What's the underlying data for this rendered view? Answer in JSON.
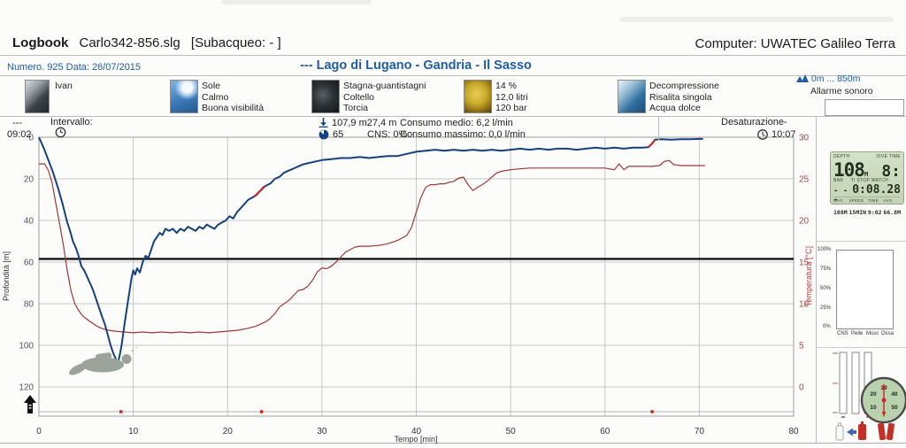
{
  "page": {
    "logbook_label": "Logbook",
    "file_name": "Carlo342-856.slg",
    "subject_suffix": "[Subacqueo:  - ]",
    "computer": "Computer: UWATEC Galileo Terra"
  },
  "header": {
    "number_date": "Numero. 925  Data: 26/07/2015",
    "dive_title": "---  Lago di Lugano - Gandria - Il Sasso",
    "altitude_range": "0m ... 850m",
    "alarm_label": "Allarme sonoro"
  },
  "tags": {
    "diver": {
      "line1": "Ivan"
    },
    "conditions": {
      "line1": "Sole",
      "line2": "Calmo",
      "line3": "Buona visibilità"
    },
    "equipment": {
      "line1": "Stagna-guantistagni",
      "line2": "Coltello",
      "line3": "Torcia"
    },
    "gas": {
      "line1": "14 %",
      "line2": "12,0 litri",
      "line3": "120 bar"
    },
    "dive_type": {
      "line1": "Decompressione",
      "line2": "Risalita singola",
      "line3": "Acqua dolce"
    }
  },
  "stats": {
    "entry_dashes": "---",
    "entry_time": "09:02",
    "interval_label": "Intervallo:",
    "max_depth": "107,9 m",
    "avg_depth": "27,4 m",
    "duration_min": "65",
    "cns": "CNS: 0%",
    "consumo_medio": "Consumo medio:  6,2 l/min",
    "consumo_massimo": "Consumo massimo:  0,0 l/min",
    "desat_label": "Desaturazione-",
    "desat_time": "10:07"
  },
  "chart_data": {
    "type": "line",
    "xlabel": "Tempo [min]",
    "ylabel_left": "Profondità [m]",
    "ylabel_right": "Temperatura [°C]",
    "xlim": [
      0,
      80
    ],
    "x_ticks": [
      0,
      10,
      20,
      30,
      40,
      50,
      60,
      70,
      80
    ],
    "depth_axis": {
      "range": [
        0,
        120
      ],
      "ticks": [
        0,
        20,
        40,
        60,
        80,
        100,
        120
      ],
      "inverted": true
    },
    "temp_axis": {
      "range": [
        0,
        30
      ],
      "ticks": [
        0,
        5,
        10,
        15,
        20,
        25,
        30
      ]
    },
    "reference_line_depth_m": 58.5,
    "grid": true,
    "colors": {
      "depth": "#16417f",
      "temperature": "#a23737",
      "alarm": "#cc2222",
      "reference": "#141414"
    },
    "series": [
      {
        "name": "Profondità [m]",
        "axis": "depth",
        "points": [
          [
            0,
            0
          ],
          [
            0.5,
            5
          ],
          [
            1,
            11
          ],
          [
            1.5,
            17
          ],
          [
            2,
            24
          ],
          [
            2.5,
            32
          ],
          [
            3,
            41
          ],
          [
            3.3,
            45
          ],
          [
            3.6,
            50
          ],
          [
            3.9,
            53
          ],
          [
            4.2,
            57
          ],
          [
            4.5,
            62
          ],
          [
            4.8,
            64
          ],
          [
            5.1,
            67
          ],
          [
            5.4,
            70
          ],
          [
            5.7,
            73
          ],
          [
            6,
            77
          ],
          [
            6.3,
            81
          ],
          [
            6.6,
            85
          ],
          [
            7,
            90
          ],
          [
            7.3,
            95
          ],
          [
            7.6,
            100
          ],
          [
            7.9,
            104
          ],
          [
            8.2,
            107
          ],
          [
            8.4,
            108
          ],
          [
            8.6,
            104
          ],
          [
            8.8,
            99
          ],
          [
            9,
            92
          ],
          [
            9.2,
            86
          ],
          [
            9.4,
            80
          ],
          [
            9.6,
            74
          ],
          [
            9.8,
            68
          ],
          [
            10,
            64
          ],
          [
            10.2,
            66
          ],
          [
            10.4,
            63
          ],
          [
            10.7,
            65
          ],
          [
            11,
            60
          ],
          [
            11.3,
            57
          ],
          [
            11.6,
            58
          ],
          [
            11.9,
            54
          ],
          [
            12.2,
            50
          ],
          [
            12.5,
            48
          ],
          [
            12.8,
            46
          ],
          [
            13.1,
            47
          ],
          [
            13.4,
            44
          ],
          [
            13.8,
            45
          ],
          [
            14.2,
            44
          ],
          [
            14.6,
            46
          ],
          [
            15,
            44
          ],
          [
            15.4,
            45
          ],
          [
            15.8,
            43
          ],
          [
            16.2,
            44
          ],
          [
            16.6,
            45
          ],
          [
            17,
            43
          ],
          [
            17.4,
            44
          ],
          [
            17.8,
            42
          ],
          [
            18.2,
            43
          ],
          [
            18.6,
            44
          ],
          [
            19,
            42
          ],
          [
            19.4,
            41
          ],
          [
            19.8,
            40
          ],
          [
            20.2,
            38
          ],
          [
            20.6,
            39
          ],
          [
            21,
            36
          ],
          [
            21.4,
            34
          ],
          [
            21.8,
            32
          ],
          [
            22.2,
            30
          ],
          [
            22.6,
            29
          ],
          [
            23,
            28
          ],
          [
            23.4,
            26
          ],
          [
            23.8,
            24
          ],
          [
            24.2,
            23
          ],
          [
            24.6,
            22
          ],
          [
            25,
            20
          ],
          [
            25.5,
            19
          ],
          [
            26,
            17
          ],
          [
            26.5,
            16
          ],
          [
            27,
            15
          ],
          [
            27.5,
            14
          ],
          [
            28,
            13
          ],
          [
            28.5,
            12.5
          ],
          [
            29,
            12
          ],
          [
            30,
            11
          ],
          [
            31,
            10.5
          ],
          [
            32,
            10
          ],
          [
            33,
            10
          ],
          [
            34,
            9.5
          ],
          [
            35,
            10
          ],
          [
            36,
            9.5
          ],
          [
            37,
            9
          ],
          [
            38,
            9
          ],
          [
            39,
            8
          ],
          [
            40,
            7
          ],
          [
            41,
            6.5
          ],
          [
            42,
            6
          ],
          [
            43,
            6.5
          ],
          [
            44,
            6
          ],
          [
            45,
            6.5
          ],
          [
            46,
            6
          ],
          [
            47,
            6.5
          ],
          [
            48,
            6
          ],
          [
            49,
            6.5
          ],
          [
            50,
            6
          ],
          [
            51,
            5.5
          ],
          [
            52,
            6
          ],
          [
            53,
            5.5
          ],
          [
            54,
            6
          ],
          [
            55,
            5.5
          ],
          [
            56,
            5.5
          ],
          [
            57,
            6
          ],
          [
            58,
            5.5
          ],
          [
            59,
            5
          ],
          [
            60,
            5.5
          ],
          [
            61,
            5
          ],
          [
            62,
            5.5
          ],
          [
            63,
            5
          ],
          [
            64,
            5
          ],
          [
            64.6,
            4.8
          ],
          [
            65,
            3
          ],
          [
            65.3,
            1.2
          ],
          [
            66,
            1
          ],
          [
            67,
            1.2
          ],
          [
            68,
            1
          ],
          [
            69,
            1
          ],
          [
            70,
            0.8
          ],
          [
            70.4,
            0.8
          ]
        ]
      },
      {
        "name": "Temperatura [°C]",
        "axis": "temp",
        "points": [
          [
            0,
            26.8
          ],
          [
            0.6,
            26.8
          ],
          [
            1,
            26
          ],
          [
            1.4,
            24.5
          ],
          [
            1.8,
            22
          ],
          [
            2.2,
            19.5
          ],
          [
            2.6,
            17
          ],
          [
            3,
            14
          ],
          [
            3.4,
            11.5
          ],
          [
            3.8,
            10
          ],
          [
            4.2,
            9.2
          ],
          [
            4.6,
            8.6
          ],
          [
            5,
            8.2
          ],
          [
            5.5,
            7.8
          ],
          [
            6,
            7.4
          ],
          [
            6.5,
            7.1
          ],
          [
            7,
            6.9
          ],
          [
            7.5,
            6.8
          ],
          [
            8,
            6.7
          ],
          [
            9,
            6.6
          ],
          [
            10,
            6.5
          ],
          [
            11,
            6.6
          ],
          [
            12,
            6.5
          ],
          [
            13,
            6.6
          ],
          [
            14,
            6.5
          ],
          [
            15,
            6.6
          ],
          [
            16,
            6.5
          ],
          [
            17,
            6.6
          ],
          [
            18,
            6.5
          ],
          [
            19,
            6.6
          ],
          [
            20,
            6.7
          ],
          [
            21,
            6.8
          ],
          [
            22,
            7
          ],
          [
            23,
            7.3
          ],
          [
            24,
            7.8
          ],
          [
            24.5,
            8.2
          ],
          [
            25,
            8.8
          ],
          [
            25.5,
            9.6
          ],
          [
            26,
            10
          ],
          [
            26.5,
            10.4
          ],
          [
            27,
            11
          ],
          [
            27.5,
            11.6
          ],
          [
            28,
            11.7
          ],
          [
            28.5,
            12.1
          ],
          [
            29,
            12.8
          ],
          [
            29.5,
            13.8
          ],
          [
            30,
            14.3
          ],
          [
            30.5,
            14.2
          ],
          [
            31,
            14.5
          ],
          [
            31.5,
            15
          ],
          [
            32,
            15.6
          ],
          [
            32.5,
            16.2
          ],
          [
            33,
            16.5
          ],
          [
            33.5,
            16.8
          ],
          [
            34,
            16.9
          ],
          [
            35,
            16.9
          ],
          [
            36,
            17
          ],
          [
            37,
            17.2
          ],
          [
            38,
            17.6
          ],
          [
            39,
            18.2
          ],
          [
            39.5,
            19.2
          ],
          [
            40,
            21
          ],
          [
            40.5,
            22.8
          ],
          [
            41,
            24
          ],
          [
            41.5,
            24.3
          ],
          [
            42,
            24.3
          ],
          [
            42.5,
            24.4
          ],
          [
            43,
            24.4
          ],
          [
            43.5,
            24.6
          ],
          [
            44,
            24.7
          ],
          [
            44.5,
            25.1
          ],
          [
            45,
            25.2
          ],
          [
            45.5,
            24.3
          ],
          [
            46,
            23.6
          ],
          [
            46.5,
            24
          ],
          [
            47,
            24.3
          ],
          [
            47.5,
            24.7
          ],
          [
            48,
            25.2
          ],
          [
            48.5,
            25.7
          ],
          [
            49,
            25.9
          ],
          [
            50,
            26.1
          ],
          [
            51,
            26.2
          ],
          [
            52,
            26.3
          ],
          [
            54,
            26.3
          ],
          [
            56,
            26.3
          ],
          [
            58,
            26.3
          ],
          [
            60,
            26.3
          ],
          [
            61,
            26.1
          ],
          [
            61.5,
            26.8
          ],
          [
            62,
            26.1
          ],
          [
            62.5,
            26.5
          ],
          [
            63,
            26.5
          ],
          [
            64,
            26.5
          ],
          [
            65,
            26.5
          ],
          [
            65.8,
            26.6
          ],
          [
            66.3,
            27.1
          ],
          [
            66.8,
            27.2
          ],
          [
            67.3,
            26.7
          ],
          [
            68,
            26.6
          ],
          [
            69,
            26.6
          ],
          [
            70,
            26.6
          ],
          [
            70.6,
            26.6
          ]
        ]
      }
    ],
    "alarm_segments": [
      [
        [
          22.8,
          28.6
        ],
        [
          23.4,
          26
        ],
        [
          24,
          23.5
        ]
      ],
      [
        [
          64.6,
          4.8
        ],
        [
          65,
          3
        ],
        [
          65.3,
          1.2
        ]
      ]
    ],
    "event_markers_min": [
      8.7,
      23.6,
      65.0
    ]
  },
  "lcd": {
    "depth_label": "DEPTH",
    "dive_time_label": "DIVE TIME",
    "depth_value": "108",
    "depth_unit": "M",
    "dive_time_value": "8:",
    "bar_label": "BAR",
    "stopwatch_label": "TI STOP WATCH",
    "bar_value": "- - -",
    "stopwatch_value": "0:08.28",
    "bottom": [
      {
        "label": "MAX",
        "value": "108M"
      },
      {
        "label": "SPEED",
        "value": "15MIN"
      },
      {
        "label": "TIME",
        "value": "9:02"
      },
      {
        "label": "AVG",
        "value": "66.8M"
      }
    ]
  },
  "saturation_panel": {
    "y_labels": [
      "100%",
      "75%",
      "50%",
      "25%",
      "0%"
    ],
    "x_labels": [
      "CNS",
      "Pelle",
      "Musc",
      "Ossa"
    ]
  },
  "compass": {
    "labels": [
      "10",
      "20",
      "30",
      "40",
      "50"
    ]
  }
}
